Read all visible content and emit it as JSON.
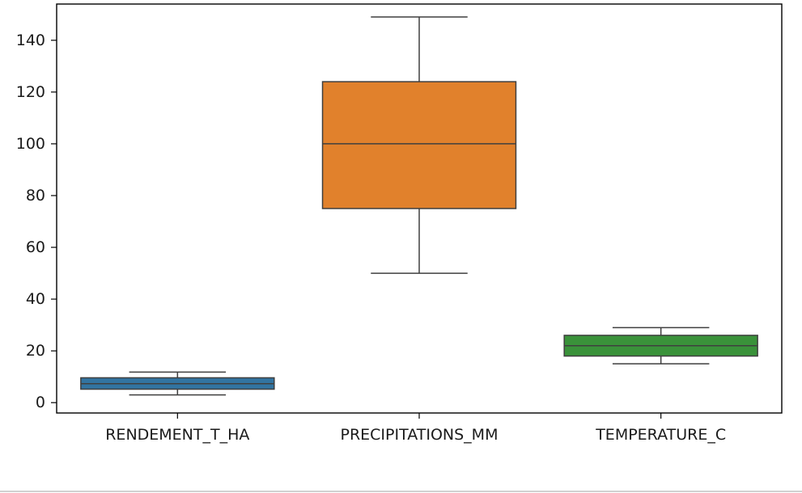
{
  "chart_data": {
    "type": "box",
    "title": "",
    "xlabel": "",
    "ylabel": "",
    "ylim": [
      -4,
      154
    ],
    "yticks": [
      0,
      20,
      40,
      60,
      80,
      100,
      120,
      140
    ],
    "grid": false,
    "categories": [
      "RENDEMENT_T_HA",
      "PRECIPITATIONS_MM",
      "TEMPERATURE_C"
    ],
    "boxes": [
      {
        "name": "RENDEMENT_T_HA",
        "whisker_low": 3,
        "q1": 5.2,
        "median": 7.3,
        "q3": 9.6,
        "whisker_high": 11.8,
        "color": "#3274a1"
      },
      {
        "name": "PRECIPITATIONS_MM",
        "whisker_low": 50,
        "q1": 75,
        "median": 100,
        "q3": 124,
        "whisker_high": 149,
        "color": "#e1812c"
      },
      {
        "name": "TEMPERATURE_C",
        "whisker_low": 15,
        "q1": 18,
        "median": 22,
        "q3": 26,
        "whisker_high": 29,
        "color": "#3a923a"
      }
    ]
  }
}
